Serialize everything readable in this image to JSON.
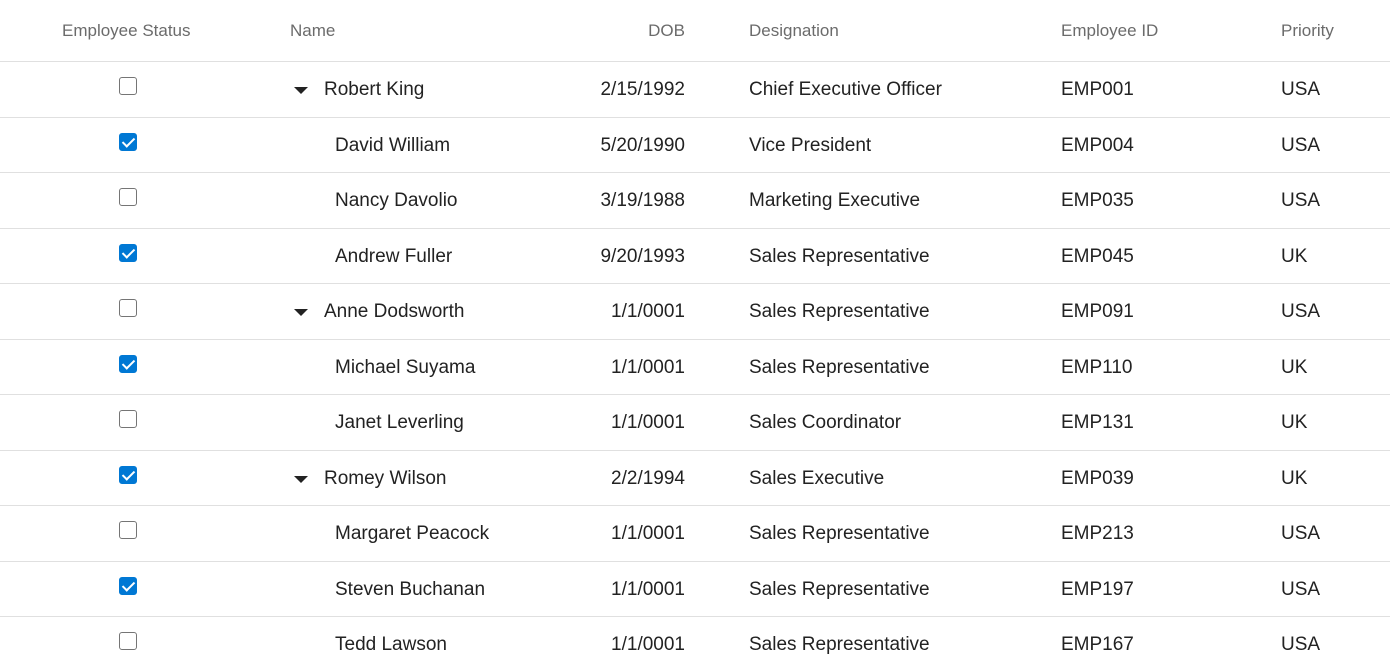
{
  "columns": {
    "status": "Employee Status",
    "name": "Name",
    "dob": "DOB",
    "designation": "Designation",
    "employee_id": "Employee ID",
    "priority": "Priority"
  },
  "rows": [
    {
      "checked": false,
      "is_parent": true,
      "name": "Robert King",
      "dob": "2/15/1992",
      "designation": "Chief Executive Officer",
      "employee_id": "EMP001",
      "priority": "USA"
    },
    {
      "checked": true,
      "is_parent": false,
      "name": "David William",
      "dob": "5/20/1990",
      "designation": "Vice President",
      "employee_id": "EMP004",
      "priority": "USA"
    },
    {
      "checked": false,
      "is_parent": false,
      "name": "Nancy Davolio",
      "dob": "3/19/1988",
      "designation": "Marketing Executive",
      "employee_id": "EMP035",
      "priority": "USA"
    },
    {
      "checked": true,
      "is_parent": false,
      "name": "Andrew Fuller",
      "dob": "9/20/1993",
      "designation": "Sales Representative",
      "employee_id": "EMP045",
      "priority": "UK"
    },
    {
      "checked": false,
      "is_parent": true,
      "name": "Anne Dodsworth",
      "dob": "1/1/0001",
      "designation": "Sales Representative",
      "employee_id": "EMP091",
      "priority": "USA"
    },
    {
      "checked": true,
      "is_parent": false,
      "name": "Michael Suyama",
      "dob": "1/1/0001",
      "designation": "Sales Representative",
      "employee_id": "EMP110",
      "priority": "UK"
    },
    {
      "checked": false,
      "is_parent": false,
      "name": "Janet Leverling",
      "dob": "1/1/0001",
      "designation": "Sales Coordinator",
      "employee_id": "EMP131",
      "priority": "UK"
    },
    {
      "checked": true,
      "is_parent": true,
      "name": "Romey Wilson",
      "dob": "2/2/1994",
      "designation": "Sales Executive",
      "employee_id": "EMP039",
      "priority": "UK"
    },
    {
      "checked": false,
      "is_parent": false,
      "name": "Margaret Peacock",
      "dob": "1/1/0001",
      "designation": "Sales Representative",
      "employee_id": "EMP213",
      "priority": "USA"
    },
    {
      "checked": true,
      "is_parent": false,
      "name": "Steven Buchanan",
      "dob": "1/1/0001",
      "designation": "Sales Representative",
      "employee_id": "EMP197",
      "priority": "USA"
    },
    {
      "checked": false,
      "is_parent": false,
      "name": "Tedd Lawson",
      "dob": "1/1/0001",
      "designation": "Sales Representative",
      "employee_id": "EMP167",
      "priority": "USA"
    }
  ],
  "colors": {
    "accent": "#0078d4",
    "header_text": "#6b6b6b",
    "cell_text": "#222222",
    "divider": "#e0e0e0"
  }
}
